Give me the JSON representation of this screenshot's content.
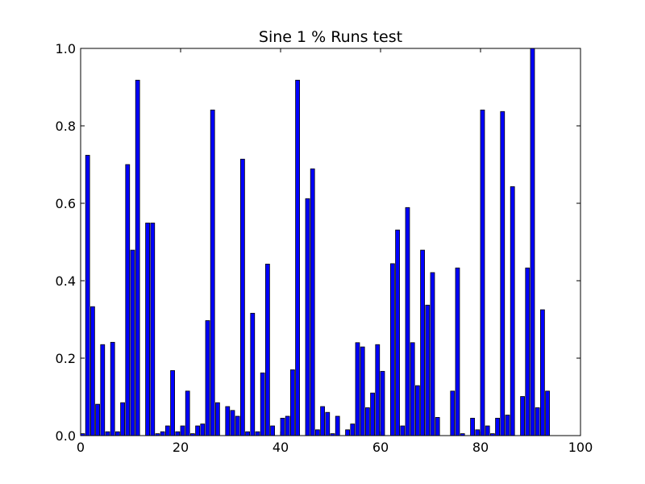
{
  "chart_data": {
    "type": "bar",
    "title": "Sine 1 % Runs test",
    "xlabel": "",
    "ylabel": "",
    "xlim": [
      0,
      100
    ],
    "ylim": [
      0.0,
      1.0
    ],
    "xticks": [
      0,
      20,
      40,
      60,
      80,
      100
    ],
    "xtick_labels": [
      "0",
      "20",
      "40",
      "60",
      "80",
      "100"
    ],
    "yticks": [
      0.0,
      0.2,
      0.4,
      0.6,
      0.8,
      1.0
    ],
    "ytick_labels": [
      "0.0",
      "0.2",
      "0.4",
      "0.6",
      "0.8",
      "1.0"
    ],
    "grid": false,
    "bar_width": 0.8,
    "bar_color": "#0000ff",
    "edge_color": "#000000",
    "x": [
      0,
      1,
      2,
      3,
      4,
      5,
      6,
      7,
      8,
      9,
      10,
      11,
      12,
      13,
      14,
      15,
      16,
      17,
      18,
      19,
      20,
      21,
      22,
      23,
      24,
      25,
      26,
      27,
      28,
      29,
      30,
      31,
      32,
      33,
      34,
      35,
      36,
      37,
      38,
      39,
      40,
      41,
      42,
      43,
      44,
      45,
      46,
      47,
      48,
      49,
      50,
      51,
      52,
      53,
      54,
      55,
      56,
      57,
      58,
      59,
      60,
      61,
      62,
      63,
      64,
      65,
      66,
      67,
      68,
      69,
      70,
      71,
      72,
      73,
      74,
      75,
      76,
      77,
      78,
      79,
      80,
      81,
      82,
      83,
      84,
      85,
      86,
      87,
      88,
      89,
      90,
      91,
      92,
      93,
      94,
      95,
      96,
      97,
      98,
      99
    ],
    "values": [
      0.005,
      0.724,
      0.333,
      0.081,
      0.235,
      0.01,
      0.241,
      0.01,
      0.085,
      0.7,
      0.479,
      0.918,
      0.0,
      0.549,
      0.549,
      0.005,
      0.01,
      0.025,
      0.168,
      0.01,
      0.025,
      0.115,
      0.005,
      0.025,
      0.03,
      0.297,
      0.841,
      0.085,
      0.0,
      0.075,
      0.065,
      0.05,
      0.714,
      0.01,
      0.316,
      0.01,
      0.162,
      0.443,
      0.025,
      0.0,
      0.045,
      0.05,
      0.17,
      0.918,
      0.0,
      0.612,
      0.689,
      0.015,
      0.075,
      0.06,
      0.005,
      0.05,
      0.0,
      0.015,
      0.03,
      0.24,
      0.229,
      0.072,
      0.11,
      0.235,
      0.166,
      0.0,
      0.444,
      0.531,
      0.025,
      0.589,
      0.24,
      0.129,
      0.479,
      0.337,
      0.421,
      0.047,
      0.0,
      0.0,
      0.115,
      0.433,
      0.005,
      0.0,
      0.045,
      0.015,
      0.841,
      0.025,
      0.005,
      0.045,
      0.837,
      0.053,
      0.643,
      0.0,
      0.101,
      0.433,
      1.0,
      0.072,
      0.325,
      0.115,
      0.0,
      0.0,
      0.0,
      0.0,
      0.0,
      0.0
    ]
  }
}
